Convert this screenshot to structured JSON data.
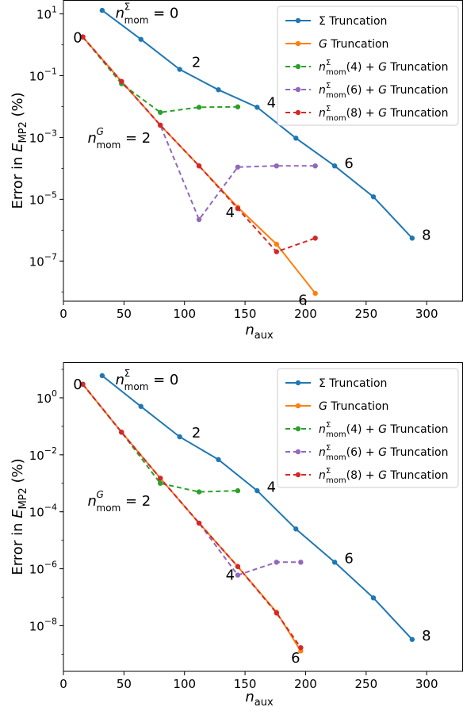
{
  "chart_data": [
    {
      "type": "line",
      "xlabel": "n_aux",
      "ylabel": "Error in E_MP2 (%)",
      "xlim": [
        0,
        330
      ],
      "ylim_log10": [
        -8.3,
        1.45
      ],
      "yscale": "log",
      "xticks": [
        "0",
        "50",
        "100",
        "150",
        "200",
        "250",
        "300"
      ],
      "yticks": [
        {
          "exp": 1,
          "label": "10",
          "sup": "1"
        },
        {
          "exp": -1,
          "label": "10",
          "sup": "−1"
        },
        {
          "exp": -3,
          "label": "10",
          "sup": "−3"
        },
        {
          "exp": -5,
          "label": "10",
          "sup": "−5"
        },
        {
          "exp": -7,
          "label": "10",
          "sup": "−7"
        }
      ],
      "legend_position": "top-right",
      "series": [
        {
          "name": "Σ Truncation",
          "style": "solid",
          "color": "#1f77b4",
          "x": [
            32,
            64,
            96,
            128,
            160,
            192,
            224,
            256,
            288
          ],
          "y": [
            13,
            1.5,
            0.16,
            0.035,
            0.0095,
            0.00095,
            0.00012,
            1.2e-05,
            5.5e-07
          ]
        },
        {
          "name": "G Truncation",
          "style": "solid",
          "color": "#ff7f0e",
          "x": [
            16,
            48,
            80,
            112,
            144,
            176,
            208
          ],
          "y": [
            1.8,
            0.065,
            0.0025,
            0.00012,
            5.5e-06,
            3.5e-07,
            9e-09
          ]
        },
        {
          "name": "nΣmom(4) + G Truncation",
          "style": "dashed",
          "color": "#2ca02c",
          "x": [
            16,
            48,
            80,
            112,
            144
          ],
          "y": [
            1.8,
            0.055,
            0.0065,
            0.0095,
            0.0098
          ]
        },
        {
          "name": "nΣmom(6) + G Truncation",
          "style": "dashed",
          "color": "#9467bd",
          "x": [
            16,
            48,
            80,
            112,
            144,
            176,
            208
          ],
          "y": [
            1.8,
            0.065,
            0.0025,
            2.2e-06,
            0.00011,
            0.00012,
            0.00012
          ]
        },
        {
          "name": "nΣmom(8) + G Truncation",
          "style": "dashed",
          "color": "#d62728",
          "x": [
            16,
            48,
            80,
            112,
            144,
            176,
            208
          ],
          "y": [
            1.8,
            0.065,
            0.0025,
            0.00012,
            5e-06,
            2e-07,
            5.5e-07
          ]
        }
      ],
      "annotations": [
        {
          "text": "0",
          "color": "#ff7f0e",
          "x": 8,
          "y": 1.7
        },
        {
          "text": "2",
          "color": "#1f77b4",
          "x": 106,
          "y": 0.27
        },
        {
          "text": "4",
          "color": "#1f77b4",
          "x": 168,
          "y": 0.0135
        },
        {
          "text": "6",
          "color": "#1f77b4",
          "x": 232,
          "y": 0.000145
        },
        {
          "text": "8",
          "color": "#1f77b4",
          "x": 296,
          "y": 7e-07
        },
        {
          "text": "4",
          "color": "#ff7f0e",
          "x": 134,
          "y": 3.7e-06
        },
        {
          "text": "6",
          "color": "#ff7f0e",
          "x": 194,
          "y": 5.5e-09
        }
      ],
      "math_labels": [
        {
          "base": "n",
          "sup": "Σ",
          "sub": "mom",
          "tail": " = 0",
          "color": "#1f77b4",
          "x": 43,
          "y": 12
        },
        {
          "base": "n",
          "sup": "G",
          "sub": "mom",
          "tail": " = 2",
          "color": "#ff7f0e",
          "x": 20,
          "y": 0.0011
        }
      ]
    },
    {
      "type": "line",
      "xlabel": "n_aux",
      "ylabel": "Error in E_MP2 (%)",
      "xlim": [
        0,
        330
      ],
      "ylim_log10": [
        -9.6,
        1.25
      ],
      "yscale": "log",
      "xticks": [
        "0",
        "50",
        "100",
        "150",
        "200",
        "250",
        "300"
      ],
      "yticks": [
        {
          "exp": 0,
          "label": "10",
          "sup": "0"
        },
        {
          "exp": -2,
          "label": "10",
          "sup": "−2"
        },
        {
          "exp": -4,
          "label": "10",
          "sup": "−4"
        },
        {
          "exp": -6,
          "label": "10",
          "sup": "−6"
        },
        {
          "exp": -8,
          "label": "10",
          "sup": "−8"
        }
      ],
      "legend_position": "top-right",
      "series": [
        {
          "name": "Σ Truncation",
          "style": "solid",
          "color": "#1f77b4",
          "x": [
            32,
            64,
            96,
            128,
            160,
            192,
            224,
            256,
            288
          ],
          "y": [
            6,
            0.5,
            0.043,
            0.0068,
            0.00055,
            2.5e-05,
            1.7e-06,
            9.5e-08,
            3.3e-09
          ]
        },
        {
          "name": "G Truncation",
          "style": "solid",
          "color": "#ff7f0e",
          "x": [
            16,
            48,
            80,
            112,
            144,
            176,
            196
          ],
          "y": [
            3,
            0.062,
            0.0015,
            4e-05,
            1.2e-06,
            3e-08,
            1.3e-09
          ]
        },
        {
          "name": "nΣmom(4) + G Truncation",
          "style": "dashed",
          "color": "#2ca02c",
          "x": [
            16,
            48,
            80,
            112,
            144
          ],
          "y": [
            3,
            0.062,
            0.001,
            0.0005,
            0.00055
          ]
        },
        {
          "name": "nΣmom(6) + G Truncation",
          "style": "dashed",
          "color": "#9467bd",
          "x": [
            16,
            48,
            80,
            112,
            144,
            176,
            196
          ],
          "y": [
            3,
            0.062,
            0.0015,
            4e-05,
            6e-07,
            1.7e-06,
            1.7e-06
          ]
        },
        {
          "name": "nΣmom(8) + G Truncation",
          "style": "dashed",
          "color": "#d62728",
          "x": [
            16,
            48,
            80,
            112,
            144,
            176,
            196
          ],
          "y": [
            3,
            0.062,
            0.0015,
            4e-05,
            1.2e-06,
            2.8e-08,
            1.7e-09
          ]
        }
      ],
      "annotations": [
        {
          "text": "0",
          "color": "#ff7f0e",
          "x": 8,
          "y": 3
        },
        {
          "text": "2",
          "color": "#1f77b4",
          "x": 106,
          "y": 0.06
        },
        {
          "text": "4",
          "color": "#1f77b4",
          "x": 168,
          "y": 0.00075
        },
        {
          "text": "6",
          "color": "#1f77b4",
          "x": 232,
          "y": 2.3e-06
        },
        {
          "text": "8",
          "color": "#1f77b4",
          "x": 296,
          "y": 4.5e-09
        },
        {
          "text": "4",
          "color": "#ff7f0e",
          "x": 134,
          "y": 6e-07
        },
        {
          "text": "6",
          "color": "#ff7f0e",
          "x": 188,
          "y": 7.5e-10
        }
      ],
      "math_labels": [
        {
          "base": "n",
          "sup": "Σ",
          "sub": "mom",
          "tail": " = 0",
          "color": "#1f77b4",
          "x": 43,
          "y": 5
        },
        {
          "base": "n",
          "sup": "G",
          "sub": "mom",
          "tail": " = 2",
          "color": "#ff7f0e",
          "x": 20,
          "y": 0.00027
        }
      ]
    }
  ]
}
